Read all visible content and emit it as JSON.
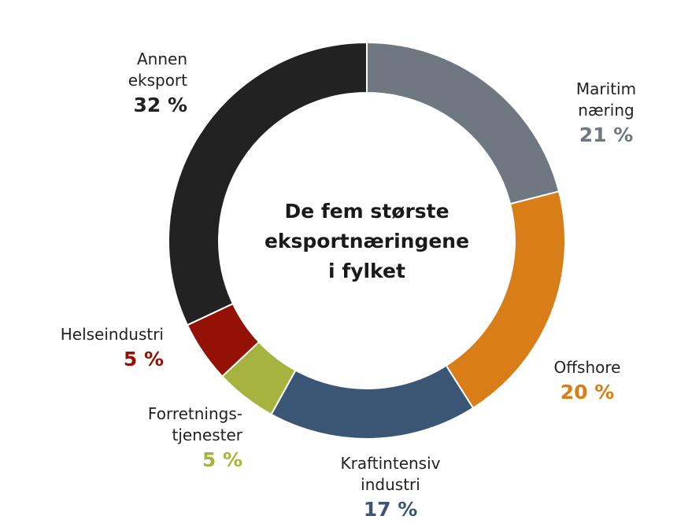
{
  "chart_data": {
    "type": "pie",
    "variant": "donut",
    "title_lines": [
      "De fem største",
      "eksportnæringene",
      "i fylket"
    ],
    "slices": [
      {
        "label_lines": [
          "Maritim",
          "næring"
        ],
        "value": 21,
        "value_label": "21 %",
        "color": "#6f7880"
      },
      {
        "label_lines": [
          "Offshore"
        ],
        "value": 20,
        "value_label": "20 %",
        "color": "#d97d19"
      },
      {
        "label_lines": [
          "Kraftintensiv",
          "industri"
        ],
        "value": 17,
        "value_label": "17 %",
        "color": "#3b5574"
      },
      {
        "label_lines": [
          "Forretnings-",
          "tjenester"
        ],
        "value": 5,
        "value_label": "5 %",
        "color": "#a6b43f"
      },
      {
        "label_lines": [
          "Helseindustri"
        ],
        "value": 5,
        "value_label": "5 %",
        "color": "#931205"
      },
      {
        "label_lines": [
          "Annen",
          "eksport"
        ],
        "value": 32,
        "value_label": "32 %",
        "color": "#222222"
      }
    ]
  }
}
